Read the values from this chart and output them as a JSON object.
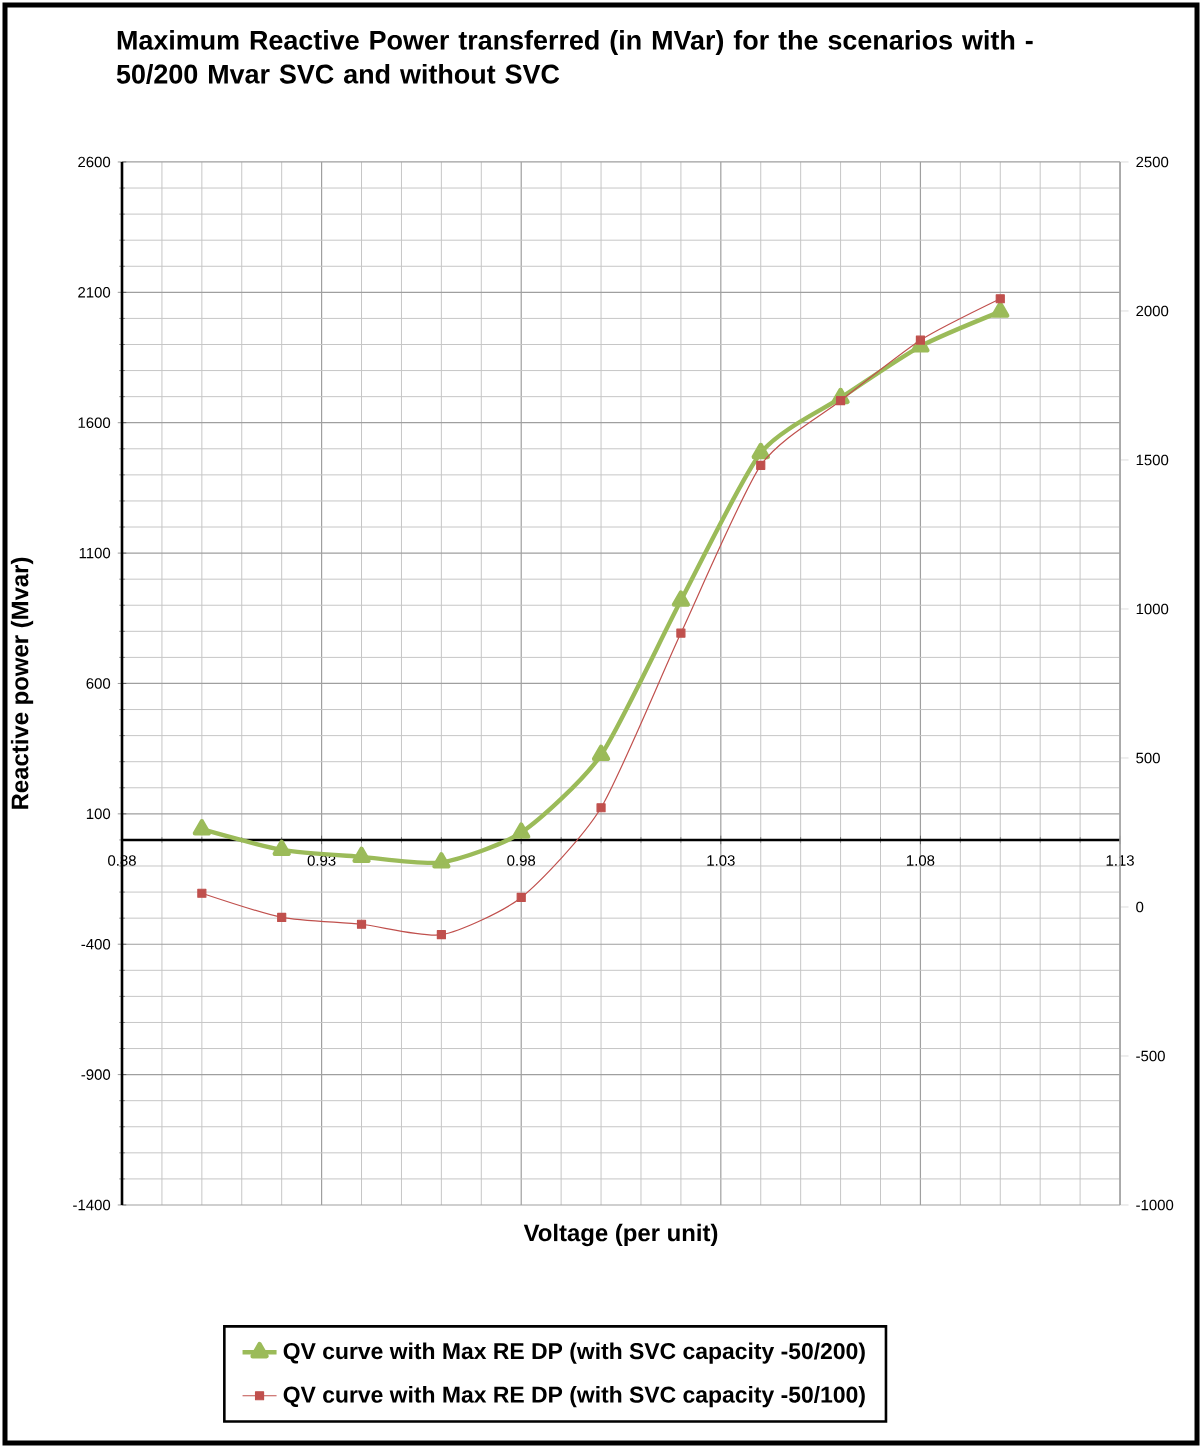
{
  "chart_data": {
    "type": "line",
    "title": "Maximum Reactive Power transferred (in MVar) for the scenarios with -50/200 Mvar SVC and without SVC",
    "xlabel": "Voltage (per unit)",
    "ylabel": "Reactive power (Mvar)",
    "x": [
      0.9,
      0.92,
      0.94,
      0.96,
      0.98,
      1.0,
      1.02,
      1.04,
      1.06,
      1.08,
      1.1
    ],
    "xlim": [
      0.88,
      1.13
    ],
    "xticks": [
      0.88,
      0.93,
      0.98,
      1.03,
      1.08,
      1.13
    ],
    "ylim": [
      -1400,
      2600
    ],
    "yticks": [
      -1400,
      -900,
      -400,
      100,
      600,
      1100,
      1600,
      2100,
      2600
    ],
    "y2lim": [
      -1000,
      2500
    ],
    "y2ticks": [
      -1000,
      -500,
      0,
      500,
      1000,
      1500,
      2000,
      2500
    ],
    "grid": true,
    "legend": "bottom",
    "series": [
      {
        "name": "QV curve with Max RE DP (with SVC capacity -50/200)",
        "color": "#9bbb59",
        "marker": "triangle",
        "values": [
          41,
          -38,
          -65,
          -86,
          28,
          326,
          918,
          1484,
          1695,
          1893,
          2026
        ]
      },
      {
        "name": "QV curve with Max RE DP (with SVC capacity -50/100)",
        "color": "#c0504d",
        "marker": "square",
        "axis": "y2",
        "values": [
          46,
          -35,
          -58,
          -93,
          32,
          333,
          919,
          1482,
          1699,
          1902,
          2041
        ]
      }
    ]
  }
}
